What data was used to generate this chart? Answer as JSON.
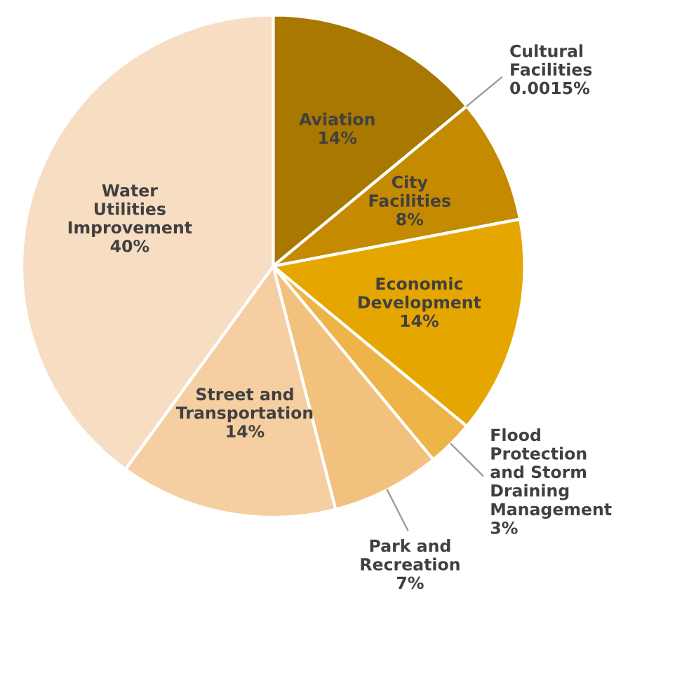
{
  "chart_data": {
    "type": "pie",
    "categories": [
      "Aviation",
      "Cultural Facilities",
      "City Facilities",
      "Economic Development",
      "Flood Protection and Storm Draining Management",
      "Park and Recreation",
      "Street and Transportation",
      "Water Utilities Improvement"
    ],
    "values": [
      14,
      0.0015,
      8,
      14,
      3,
      7,
      14,
      40
    ],
    "colors": [
      "#a87800",
      "#b88400",
      "#c48a00",
      "#e6a600",
      "#efb447",
      "#f2c17e",
      "#f5cfa2",
      "#f7ddc2"
    ],
    "value_labels": [
      "14%",
      "0.0015%",
      "8%",
      "14%",
      "3%",
      "7%",
      "14%",
      "40%"
    ],
    "legend": false
  }
}
